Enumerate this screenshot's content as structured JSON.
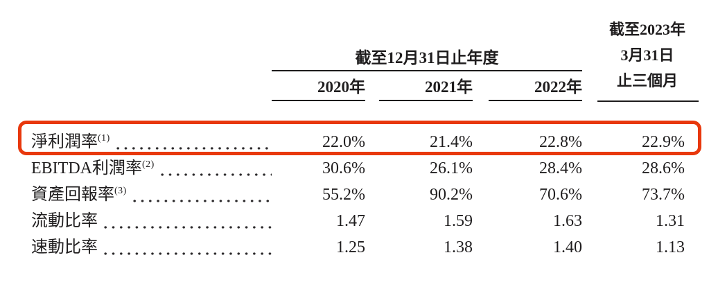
{
  "accent_red": "#e8380d",
  "table": {
    "year_group_header": "截至12月31日止年度",
    "year_headers": [
      "2020年",
      "2021年",
      "2022年"
    ],
    "right_header_lines": [
      "截至2023年",
      "3月31日",
      "止三個月"
    ],
    "rows": [
      {
        "label": "淨利潤率",
        "note": "(1)",
        "highlighted": true,
        "values": [
          "22.0%",
          "21.4%",
          "22.8%",
          "22.9%"
        ]
      },
      {
        "label": "EBITDA利潤率",
        "note": "(2)",
        "highlighted": false,
        "values": [
          "30.6%",
          "26.1%",
          "28.4%",
          "28.6%"
        ]
      },
      {
        "label": "資產回報率",
        "note": "(3)",
        "highlighted": false,
        "values": [
          "55.2%",
          "90.2%",
          "70.6%",
          "73.7%"
        ]
      },
      {
        "label": "流動比率",
        "note": "",
        "highlighted": false,
        "values": [
          "1.47",
          "1.59",
          "1.63",
          "1.31"
        ]
      },
      {
        "label": "速動比率",
        "note": "",
        "highlighted": false,
        "values": [
          "1.25",
          "1.38",
          "1.40",
          "1.13"
        ]
      }
    ]
  }
}
